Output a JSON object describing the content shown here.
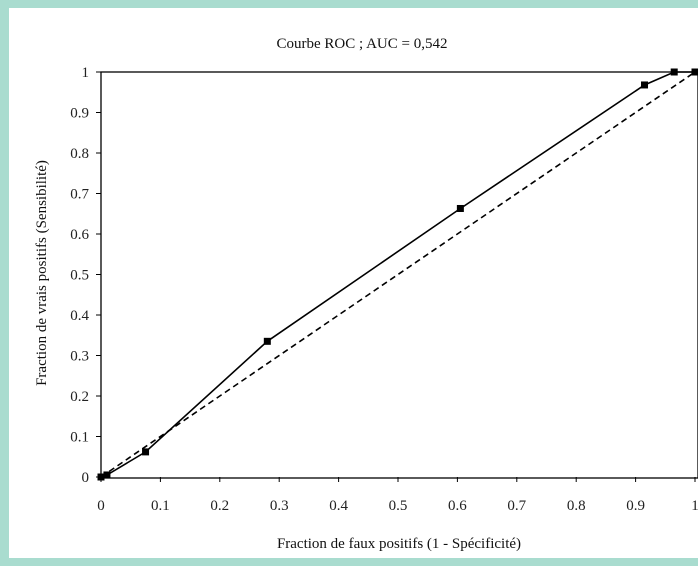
{
  "chart_data": {
    "type": "line",
    "title": "Courbe ROC ; AUC = 0,542",
    "xlabel": "Fraction de faux positifs (1 - Spécificité)",
    "ylabel": "Fraction de vrais positifs (Sensibilité)",
    "xlim": [
      0,
      1
    ],
    "ylim": [
      0,
      1
    ],
    "x_ticks": [
      "0",
      "0.1",
      "0.2",
      "0.3",
      "0.4",
      "0.5",
      "0.6",
      "0.7",
      "0.8",
      "0.9",
      "1"
    ],
    "y_ticks": [
      "0",
      "0.1",
      "0.2",
      "0.3",
      "0.4",
      "0.5",
      "0.6",
      "0.7",
      "0.8",
      "0.9",
      "1"
    ],
    "grid": false,
    "legend": "none",
    "series": [
      {
        "style": "solid",
        "markers": "square",
        "color": "#000000",
        "points": [
          {
            "x": 0,
            "y": 0
          },
          {
            "x": 0.01,
            "y": 0.005
          },
          {
            "x": 0.075,
            "y": 0.062
          },
          {
            "x": 0.28,
            "y": 0.335
          },
          {
            "x": 0.605,
            "y": 0.663
          },
          {
            "x": 0.915,
            "y": 0.968
          },
          {
            "x": 0.965,
            "y": 1.0
          },
          {
            "x": 1.0,
            "y": 1.0
          }
        ]
      },
      {
        "style": "dashed",
        "markers": "none",
        "color": "#000000",
        "points": [
          {
            "x": 0,
            "y": 0
          },
          {
            "x": 1,
            "y": 1
          }
        ]
      }
    ]
  }
}
